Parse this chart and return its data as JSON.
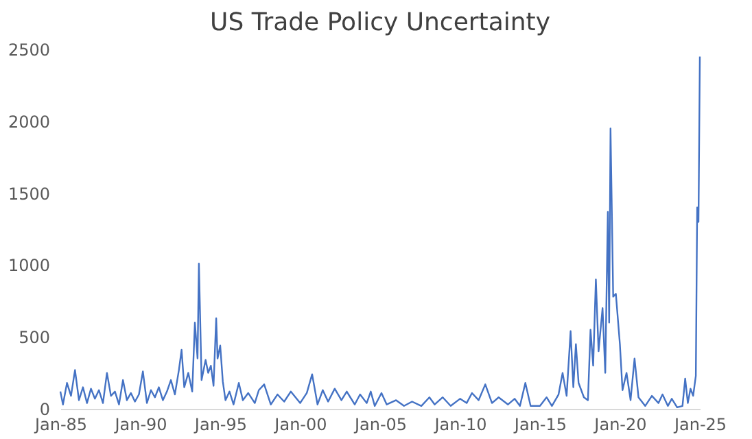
{
  "chart_data": {
    "type": "line",
    "title": "US Trade Policy Uncertainty",
    "x": [
      "1985-01",
      "1985-03",
      "1985-06",
      "1985-09",
      "1985-12",
      "1986-03",
      "1986-06",
      "1986-09",
      "1986-12",
      "1987-03",
      "1987-06",
      "1987-09",
      "1987-12",
      "1988-03",
      "1988-06",
      "1988-09",
      "1988-12",
      "1989-03",
      "1989-06",
      "1989-09",
      "1989-12",
      "1990-03",
      "1990-06",
      "1990-09",
      "1990-12",
      "1991-03",
      "1991-06",
      "1991-09",
      "1991-12",
      "1992-03",
      "1992-06",
      "1992-08",
      "1992-10",
      "1993-01",
      "1993-04",
      "1993-06",
      "1993-08",
      "1993-09",
      "1993-11",
      "1994-02",
      "1994-04",
      "1994-06",
      "1994-08",
      "1994-10",
      "1994-11",
      "1995-01",
      "1995-03",
      "1995-05",
      "1995-08",
      "1995-11",
      "1996-03",
      "1996-06",
      "1996-10",
      "1997-03",
      "1997-06",
      "1997-10",
      "1998-03",
      "1998-08",
      "1999-01",
      "1999-06",
      "2000-01",
      "2000-06",
      "2000-10",
      "2001-02",
      "2001-06",
      "2001-10",
      "2002-03",
      "2002-08",
      "2002-12",
      "2003-06",
      "2003-10",
      "2004-03",
      "2004-06",
      "2004-09",
      "2005-02",
      "2005-06",
      "2006-01",
      "2006-07",
      "2007-01",
      "2007-08",
      "2008-02",
      "2008-06",
      "2008-12",
      "2009-06",
      "2010-01",
      "2010-06",
      "2010-10",
      "2011-03",
      "2011-08",
      "2012-01",
      "2012-06",
      "2013-01",
      "2013-06",
      "2013-10",
      "2014-02",
      "2014-06",
      "2015-01",
      "2015-06",
      "2015-10",
      "2016-03",
      "2016-06",
      "2016-09",
      "2016-12",
      "2017-02",
      "2017-04",
      "2017-06",
      "2017-10",
      "2018-01",
      "2018-03",
      "2018-05",
      "2018-07",
      "2018-09",
      "2018-10",
      "2018-12",
      "2019-02",
      "2019-04",
      "2019-05",
      "2019-06",
      "2019-08",
      "2019-10",
      "2020-01",
      "2020-03",
      "2020-06",
      "2020-09",
      "2020-12",
      "2021-03",
      "2021-08",
      "2022-01",
      "2022-06",
      "2022-09",
      "2023-01",
      "2023-04",
      "2023-08",
      "2023-12",
      "2024-02",
      "2024-04",
      "2024-06",
      "2024-08",
      "2024-10",
      "2024-11",
      "2024-12",
      "2025-01"
    ],
    "series": [
      {
        "color": "#4472c4",
        "values": [
          120,
          30,
          180,
          90,
          270,
          60,
          150,
          40,
          140,
          70,
          130,
          40,
          250,
          90,
          120,
          30,
          200,
          60,
          110,
          50,
          100,
          260,
          40,
          130,
          80,
          150,
          60,
          120,
          200,
          100,
          270,
          410,
          150,
          250,
          120,
          600,
          350,
          1010,
          200,
          340,
          250,
          300,
          160,
          630,
          350,
          440,
          190,
          60,
          120,
          30,
          180,
          60,
          110,
          40,
          130,
          170,
          30,
          100,
          50,
          120,
          40,
          110,
          240,
          30,
          130,
          50,
          140,
          60,
          120,
          30,
          100,
          40,
          120,
          20,
          110,
          30,
          60,
          20,
          50,
          20,
          80,
          30,
          80,
          20,
          70,
          40,
          110,
          60,
          170,
          40,
          80,
          30,
          70,
          20,
          180,
          20,
          20,
          80,
          20,
          100,
          250,
          90,
          540,
          150,
          450,
          180,
          80,
          60,
          550,
          300,
          900,
          400,
          500,
          700,
          250,
          1370,
          600,
          1950,
          780,
          800,
          450,
          130,
          250,
          60,
          350,
          80,
          20,
          90,
          40,
          100,
          20,
          70,
          10,
          20,
          210,
          40,
          140,
          90,
          230,
          1400,
          1300,
          2450
        ]
      }
    ],
    "xlim": [
      "1985-01",
      "2025-01"
    ],
    "xticks": [
      {
        "value": "1985-01",
        "label": "Jan-85"
      },
      {
        "value": "1990-01",
        "label": "Jan-90"
      },
      {
        "value": "1995-01",
        "label": "Jan-95"
      },
      {
        "value": "2000-01",
        "label": "Jan-00"
      },
      {
        "value": "2005-01",
        "label": "Jan-05"
      },
      {
        "value": "2010-01",
        "label": "Jan-10"
      },
      {
        "value": "2015-01",
        "label": "Jan-15"
      },
      {
        "value": "2020-01",
        "label": "Jan-20"
      },
      {
        "value": "2025-01",
        "label": "Jan-25"
      }
    ],
    "ylim": [
      0,
      2500
    ],
    "yticks": [
      0,
      500,
      1000,
      1500,
      2000,
      2500
    ],
    "grid": false,
    "legend": false,
    "marker": "none",
    "line_style": "solid"
  }
}
